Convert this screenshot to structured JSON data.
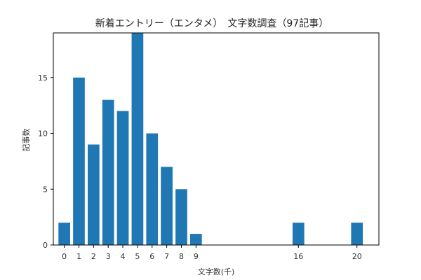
{
  "chart_data": {
    "type": "bar",
    "title": "新着エントリー（エンタメ）　文字数調査（97記事）",
    "xlabel": "文字数(千)",
    "ylabel": "記事数",
    "x": [
      0,
      1,
      2,
      3,
      4,
      5,
      6,
      7,
      8,
      9,
      16,
      20
    ],
    "values": [
      2,
      15,
      9,
      13,
      12,
      19,
      10,
      7,
      5,
      1,
      2,
      2
    ],
    "x_ticks": [
      0,
      1,
      2,
      3,
      4,
      5,
      6,
      7,
      8,
      9,
      16,
      20
    ],
    "y_ticks": [
      0,
      5,
      10,
      15
    ],
    "xlim": [
      -0.75,
      21.5
    ],
    "ylim": [
      0,
      19
    ],
    "bar_color": "#1f77b4",
    "grid": false,
    "legend": "none"
  }
}
